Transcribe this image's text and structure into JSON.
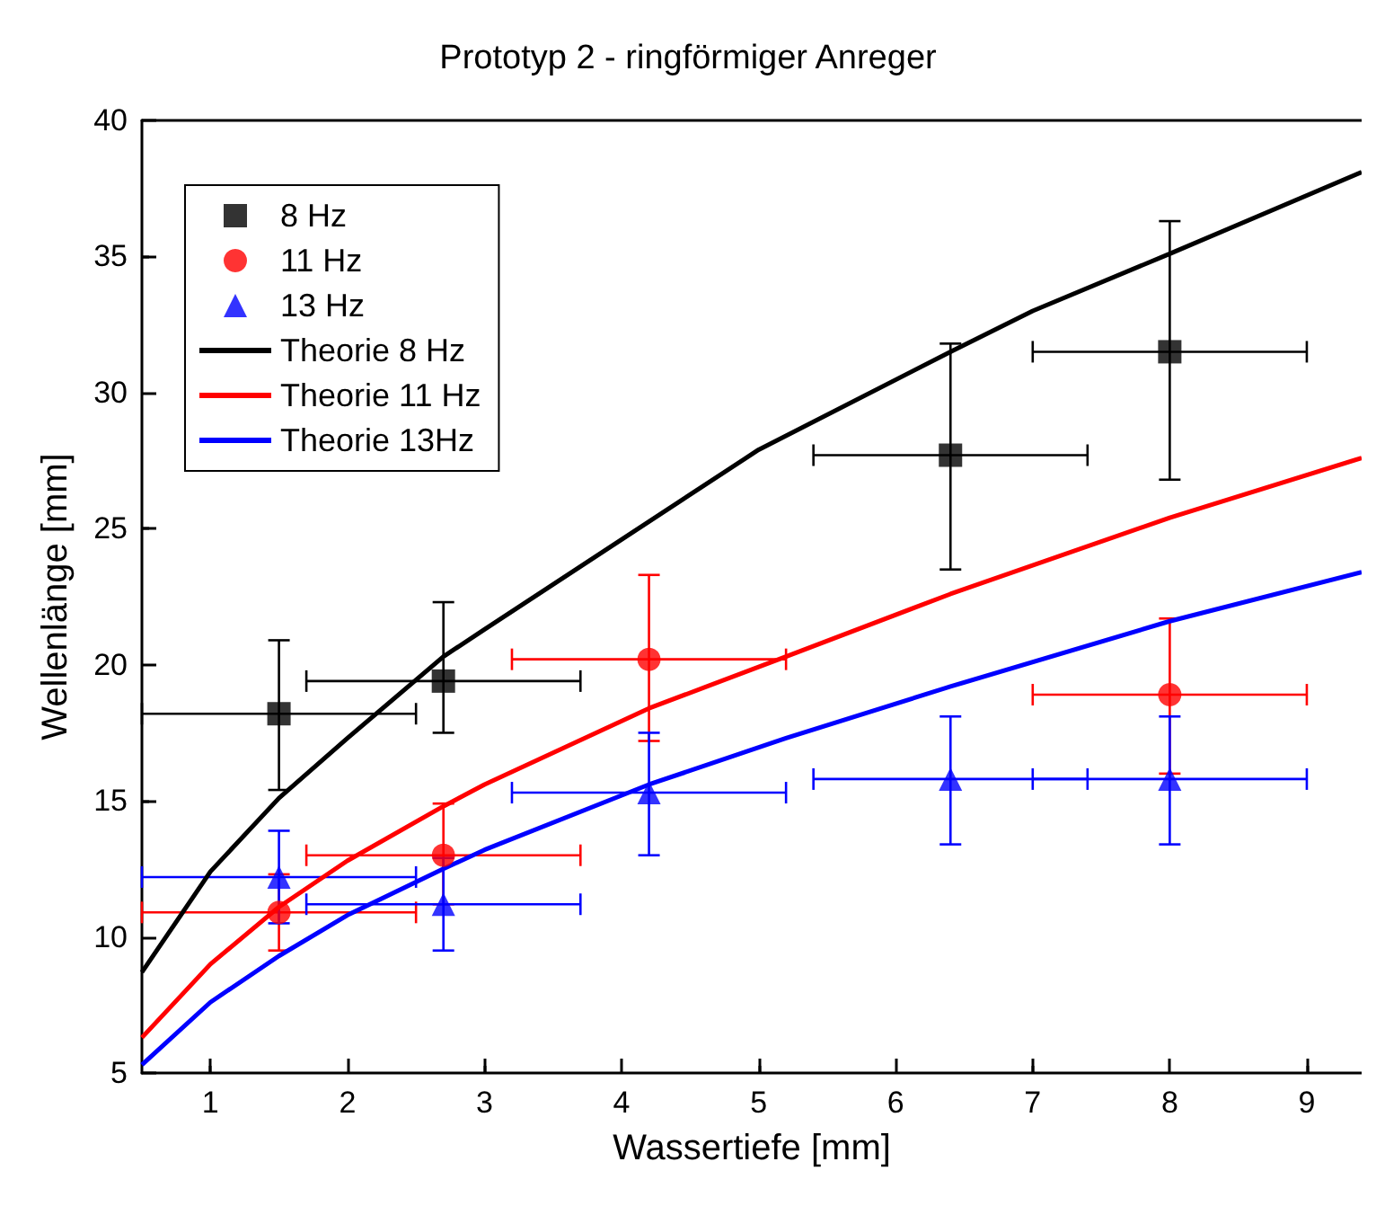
{
  "chart_data": {
    "type": "scatter",
    "title": "Prototyp 2 - ringförmiger Anreger",
    "xlabel": "Wassertiefe [mm]",
    "ylabel": "Wellenlänge [mm]",
    "xlim": [
      0.5,
      9.4
    ],
    "ylim": [
      5,
      40
    ],
    "xticks": [
      1,
      2,
      3,
      4,
      5,
      6,
      7,
      8,
      9
    ],
    "yticks": [
      5,
      10,
      15,
      20,
      25,
      30,
      35,
      40
    ],
    "grid": false,
    "legend": "top left",
    "series": [
      {
        "name": "8 Hz",
        "marker": "square",
        "color": "#000000",
        "x": [
          1.5,
          2.7,
          6.4,
          8
        ],
        "values": [
          18.2,
          19.4,
          27.7,
          31.5
        ],
        "errors": [
          [
            15.4,
            20.9
          ],
          [
            17.5,
            22.3
          ],
          [
            23.5,
            31.8
          ],
          [
            26.8,
            36.3
          ]
        ],
        "xerrors": [
          [
            0.5,
            2.5
          ],
          [
            1.7,
            3.7
          ],
          [
            5.4,
            7.4
          ],
          [
            7,
            9
          ]
        ]
      },
      {
        "name": "11 Hz",
        "marker": "circle",
        "color": "#ff0000",
        "x": [
          1.5,
          2.7,
          4.2,
          8
        ],
        "values": [
          10.9,
          13.0,
          20.2,
          18.9
        ],
        "errors": [
          [
            9.5,
            12.3
          ],
          [
            11.2,
            14.9
          ],
          [
            17.2,
            23.3
          ],
          [
            16.0,
            21.7
          ]
        ],
        "xerrors": [
          [
            0.5,
            2.5
          ],
          [
            1.7,
            3.7
          ],
          [
            3.2,
            5.2
          ],
          [
            7,
            9
          ]
        ]
      },
      {
        "name": "13 Hz",
        "marker": "triangle",
        "color": "#0000ff",
        "x": [
          1.5,
          2.7,
          4.2,
          6.4,
          8
        ],
        "values": [
          12.2,
          11.2,
          15.3,
          15.8,
          15.8
        ],
        "errors": [
          [
            10.5,
            13.9
          ],
          [
            9.5,
            12.9
          ],
          [
            13.0,
            17.5
          ],
          [
            13.4,
            18.1
          ],
          [
            13.4,
            18.1
          ]
        ],
        "xerrors": [
          [
            0.5,
            2.5
          ],
          [
            1.7,
            3.7
          ],
          [
            3.2,
            5.2
          ],
          [
            5.4,
            7.4
          ],
          [
            7,
            9
          ]
        ]
      },
      {
        "name": "Theorie 8 Hz",
        "type": "line",
        "marker": "none",
        "line_style": "solid",
        "color": "#000000",
        "x": [
          0.5,
          1,
          1.5,
          2,
          2.7,
          3,
          4,
          5,
          6.4,
          7,
          8,
          9.4
        ],
        "values": [
          8.7,
          12.4,
          15.1,
          17.3,
          20.3,
          21.3,
          24.6,
          27.9,
          31.5,
          33.0,
          35.1,
          38.1
        ]
      },
      {
        "name": "Theorie 11 Hz",
        "type": "line",
        "marker": "none",
        "line_style": "solid",
        "color": "#ff0000",
        "x": [
          0.5,
          1,
          1.5,
          2,
          2.7,
          3,
          4.2,
          5.2,
          6.4,
          8,
          9.4
        ],
        "values": [
          6.3,
          9.0,
          11.1,
          12.8,
          14.8,
          15.6,
          18.4,
          20.3,
          22.6,
          25.4,
          27.6
        ]
      },
      {
        "name": "Theorie 13Hz",
        "type": "line",
        "marker": "none",
        "line_style": "solid",
        "color": "#0000ff",
        "x": [
          0.5,
          1,
          1.5,
          2,
          2.7,
          3,
          4.2,
          5.2,
          6.4,
          8,
          9.4
        ],
        "values": [
          5.3,
          7.6,
          9.3,
          10.8,
          12.5,
          13.2,
          15.6,
          17.3,
          19.2,
          21.6,
          23.4
        ]
      }
    ]
  }
}
